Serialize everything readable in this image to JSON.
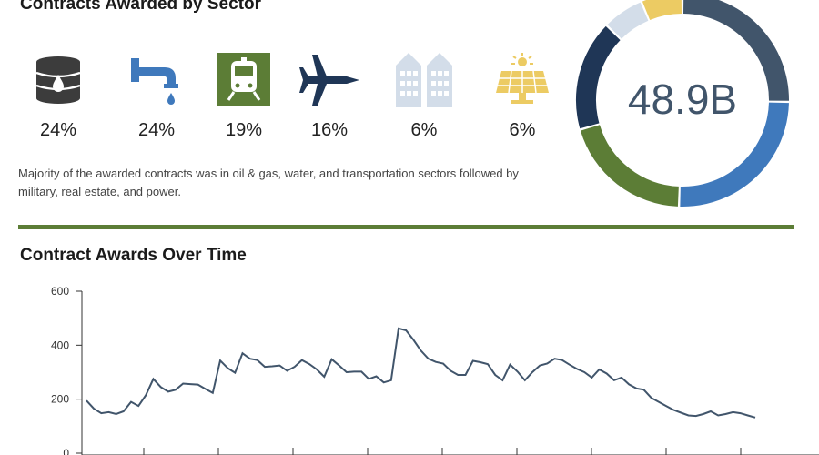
{
  "sector_title": "Contracts Awarded by Sector",
  "time_title": "Contract Awards Over Time",
  "sectors": [
    {
      "icon": "oil-barrel-icon",
      "pct": "24%",
      "value": 24,
      "color": "#3c3c3c"
    },
    {
      "icon": "water-tap-icon",
      "pct": "24%",
      "value": 24,
      "color": "#3f79bc"
    },
    {
      "icon": "train-icon",
      "pct": "19%",
      "value": 19,
      "color": "#5c7d36"
    },
    {
      "icon": "fighter-jet-icon",
      "pct": "16%",
      "value": 16,
      "color": "#1f3656"
    },
    {
      "icon": "buildings-icon",
      "pct": "6%",
      "value": 6,
      "color": "#d3dde9"
    },
    {
      "icon": "solar-panel-icon",
      "pct": "6%",
      "value": 6,
      "color": "#eccb63"
    }
  ],
  "note": "Majority of the awarded contracts was in oil & gas, water, and transportation sectors followed by military, real estate, and power.",
  "divider_color": "#5c7d36",
  "donut_total": "48.9B",
  "donut_colors": [
    "#41556b",
    "#3f79bc",
    "#5c7d36",
    "#1f3656",
    "#d3dde9",
    "#eccb63"
  ],
  "chart_data": {
    "type": "line",
    "title": "Contract Awards Over Time",
    "ylim": [
      0,
      600
    ],
    "yticks": [
      0,
      200,
      400,
      600
    ],
    "line_color": "#41556b",
    "x": [
      0,
      1,
      2,
      3,
      4,
      5,
      6,
      7,
      8,
      9,
      10,
      11,
      12,
      13,
      14,
      15,
      16,
      17,
      18,
      19,
      20,
      21,
      22,
      23,
      24,
      25,
      26,
      27,
      28,
      29,
      30,
      31,
      32,
      33,
      34,
      35,
      36,
      37,
      38,
      39,
      40,
      41,
      42,
      43,
      44,
      45,
      46,
      47,
      48,
      49,
      50,
      51,
      52,
      53,
      54,
      55,
      56,
      57,
      58,
      59,
      60,
      61,
      62,
      63,
      64,
      65,
      66,
      67,
      68,
      69,
      70,
      71,
      72,
      73,
      74,
      75,
      76,
      77,
      78,
      79,
      80,
      81,
      82,
      83,
      84,
      85,
      86,
      87,
      88,
      89,
      90
    ],
    "values": [
      195,
      165,
      148,
      152,
      145,
      155,
      190,
      175,
      215,
      275,
      245,
      228,
      235,
      258,
      256,
      254,
      238,
      223,
      343,
      315,
      298,
      370,
      350,
      345,
      320,
      322,
      325,
      305,
      320,
      345,
      330,
      310,
      283,
      348,
      325,
      300,
      302,
      302,
      275,
      285,
      262,
      270,
      462,
      455,
      420,
      380,
      350,
      338,
      332,
      305,
      290,
      290,
      342,
      337,
      330,
      290,
      270,
      328,
      302,
      270,
      300,
      325,
      332,
      350,
      345,
      328,
      312,
      300,
      280,
      310,
      295,
      270,
      280,
      255,
      240,
      235,
      205,
      190,
      175,
      160,
      150,
      140,
      138,
      145,
      155,
      140,
      145,
      152,
      148,
      140,
      132
    ]
  }
}
